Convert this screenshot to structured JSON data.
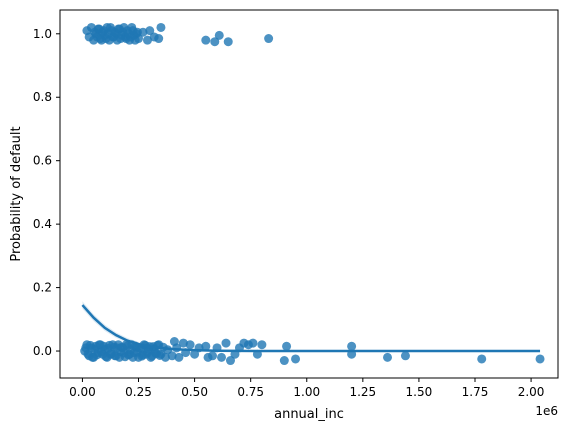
{
  "chart_data": {
    "type": "scatter",
    "title": "",
    "xlabel": "annual_inc",
    "ylabel": "Probability of default",
    "x_offset_label": "1e6",
    "xlim": [
      -0.1,
      2.12
    ],
    "ylim": [
      -0.085,
      1.075
    ],
    "x_ticks": [
      0.0,
      0.25,
      0.5,
      0.75,
      1.0,
      1.25,
      1.5,
      1.75,
      2.0
    ],
    "x_tick_labels": [
      "0.00",
      "0.25",
      "0.50",
      "0.75",
      "1.00",
      "1.25",
      "1.50",
      "1.75",
      "2.00"
    ],
    "y_ticks": [
      0.0,
      0.2,
      0.4,
      0.6,
      0.8,
      1.0
    ],
    "y_tick_labels": [
      "0.0",
      "0.2",
      "0.4",
      "0.6",
      "0.8",
      "1.0"
    ],
    "grid": false,
    "legend": "none",
    "point_color": "#1f77b4",
    "series": [
      {
        "kind": "points",
        "description_y": "jittered outcome",
        "points": [
          [
            0.02,
            1.01
          ],
          [
            0.03,
            0.99
          ],
          [
            0.04,
            1.02
          ],
          [
            0.05,
            0.98
          ],
          [
            0.06,
            1.0
          ],
          [
            0.07,
            1.015
          ],
          [
            0.08,
            0.985
          ],
          [
            0.09,
            1.005
          ],
          [
            0.1,
            0.995
          ],
          [
            0.11,
            1.02
          ],
          [
            0.12,
            0.98
          ],
          [
            0.13,
            1.01
          ],
          [
            0.14,
            0.99
          ],
          [
            0.15,
            1.0
          ],
          [
            0.16,
            1.015
          ],
          [
            0.17,
            0.985
          ],
          [
            0.18,
            1.005
          ],
          [
            0.19,
            0.99
          ],
          [
            0.2,
            1.01
          ],
          [
            0.21,
            0.98
          ],
          [
            0.22,
            1.02
          ],
          [
            0.23,
            0.995
          ],
          [
            0.24,
            1.0
          ],
          [
            0.25,
            0.985
          ],
          [
            0.27,
            1.005
          ],
          [
            0.29,
            0.98
          ],
          [
            0.3,
            1.01
          ],
          [
            0.32,
            0.99
          ],
          [
            0.35,
            1.02
          ],
          [
            0.34,
            0.985
          ],
          [
            0.055,
            1.005
          ],
          [
            0.065,
            0.99
          ],
          [
            0.075,
            1.015
          ],
          [
            0.085,
            0.98
          ],
          [
            0.095,
            1.01
          ],
          [
            0.105,
            0.985
          ],
          [
            0.115,
            1.0
          ],
          [
            0.125,
            1.02
          ],
          [
            0.135,
            0.99
          ],
          [
            0.145,
            1.005
          ],
          [
            0.155,
            0.98
          ],
          [
            0.165,
            1.015
          ],
          [
            0.175,
            0.995
          ],
          [
            0.185,
            1.02
          ],
          [
            0.195,
            0.985
          ],
          [
            0.205,
            1.0
          ],
          [
            0.215,
            0.99
          ],
          [
            0.225,
            1.01
          ],
          [
            0.235,
            0.98
          ],
          [
            0.245,
            1.005
          ],
          [
            0.55,
            0.98
          ],
          [
            0.59,
            0.975
          ],
          [
            0.61,
            0.995
          ],
          [
            0.65,
            0.975
          ],
          [
            0.83,
            0.985
          ]
        ]
      },
      {
        "kind": "points",
        "description_y": "jittered outcome",
        "points": [
          [
            0.01,
            0.0
          ],
          [
            0.02,
            0.02
          ],
          [
            0.03,
            -0.015
          ],
          [
            0.04,
            0.01
          ],
          [
            0.05,
            -0.02
          ],
          [
            0.06,
            0.015
          ],
          [
            0.07,
            -0.005
          ],
          [
            0.08,
            0.02
          ],
          [
            0.09,
            -0.01
          ],
          [
            0.1,
            0.005
          ],
          [
            0.11,
            -0.02
          ],
          [
            0.12,
            0.018
          ],
          [
            0.13,
            -0.008
          ],
          [
            0.14,
            0.012
          ],
          [
            0.15,
            -0.015
          ],
          [
            0.16,
            0.02
          ],
          [
            0.17,
            -0.002
          ],
          [
            0.18,
            0.01
          ],
          [
            0.19,
            -0.018
          ],
          [
            0.2,
            0.016
          ],
          [
            0.21,
            -0.01
          ],
          [
            0.22,
            0.02
          ],
          [
            0.23,
            -0.005
          ],
          [
            0.24,
            0.012
          ],
          [
            0.25,
            -0.02
          ],
          [
            0.26,
            0.008
          ],
          [
            0.27,
            -0.012
          ],
          [
            0.28,
            0.018
          ],
          [
            0.29,
            -0.004
          ],
          [
            0.3,
            0.014
          ],
          [
            0.31,
            -0.016
          ],
          [
            0.32,
            0.006
          ],
          [
            0.33,
            -0.008
          ],
          [
            0.34,
            0.02
          ],
          [
            0.35,
            -0.01
          ],
          [
            0.36,
            0.012
          ],
          [
            0.37,
            -0.02
          ],
          [
            0.38,
            0.004
          ],
          [
            0.4,
            -0.015
          ],
          [
            0.41,
            0.03
          ],
          [
            0.42,
            0.01
          ],
          [
            0.43,
            -0.02
          ],
          [
            0.45,
            0.025
          ],
          [
            0.46,
            -0.005
          ],
          [
            0.48,
            0.02
          ],
          [
            0.5,
            -0.01
          ],
          [
            0.52,
            0.01
          ],
          [
            0.55,
            0.015
          ],
          [
            0.56,
            -0.02
          ],
          [
            0.58,
            -0.015
          ],
          [
            0.6,
            0.01
          ],
          [
            0.62,
            -0.02
          ],
          [
            0.64,
            0.025
          ],
          [
            0.66,
            -0.03
          ],
          [
            0.68,
            -0.01
          ],
          [
            0.7,
            0.01
          ],
          [
            0.72,
            0.025
          ],
          [
            0.74,
            0.02
          ],
          [
            0.76,
            0.025
          ],
          [
            0.78,
            -0.01
          ],
          [
            0.8,
            0.02
          ],
          [
            0.9,
            -0.03
          ],
          [
            0.91,
            0.015
          ],
          [
            0.95,
            -0.025
          ],
          [
            1.2,
            0.015
          ],
          [
            1.2,
            -0.01
          ],
          [
            1.36,
            -0.02
          ],
          [
            1.44,
            -0.015
          ],
          [
            1.78,
            -0.025
          ],
          [
            2.04,
            -0.025
          ],
          [
            0.015,
            0.01
          ],
          [
            0.025,
            -0.01
          ],
          [
            0.035,
            0.018
          ],
          [
            0.045,
            -0.02
          ],
          [
            0.055,
            0.005
          ],
          [
            0.065,
            -0.012
          ],
          [
            0.075,
            0.02
          ],
          [
            0.085,
            -0.003
          ],
          [
            0.095,
            0.015
          ],
          [
            0.105,
            -0.018
          ],
          [
            0.115,
            0.008
          ],
          [
            0.125,
            -0.01
          ],
          [
            0.135,
            0.02
          ],
          [
            0.145,
            -0.015
          ],
          [
            0.155,
            0.01
          ],
          [
            0.165,
            -0.02
          ],
          [
            0.175,
            0.012
          ],
          [
            0.185,
            -0.006
          ],
          [
            0.195,
            0.02
          ],
          [
            0.205,
            -0.012
          ],
          [
            0.215,
            0.004
          ],
          [
            0.225,
            -0.02
          ],
          [
            0.235,
            0.016
          ],
          [
            0.245,
            -0.004
          ],
          [
            0.255,
            0.01
          ],
          [
            0.265,
            -0.016
          ],
          [
            0.275,
            0.02
          ],
          [
            0.285,
            -0.01
          ],
          [
            0.295,
            0.006
          ],
          [
            0.305,
            -0.02
          ],
          [
            0.315,
            0.014
          ],
          [
            0.325,
            -0.006
          ],
          [
            0.335,
            0.018
          ],
          [
            0.345,
            -0.014
          ]
        ]
      },
      {
        "kind": "line",
        "description_y": "fitted logistic curve",
        "points": [
          [
            0.0,
            0.145
          ],
          [
            0.05,
            0.105
          ],
          [
            0.1,
            0.073
          ],
          [
            0.15,
            0.05
          ],
          [
            0.2,
            0.033
          ],
          [
            0.25,
            0.022
          ],
          [
            0.3,
            0.014
          ],
          [
            0.4,
            0.006
          ],
          [
            0.5,
            0.003
          ],
          [
            0.6,
            0.001
          ],
          [
            0.8,
            0.0
          ],
          [
            1.0,
            0.0
          ],
          [
            1.5,
            0.0
          ],
          [
            2.04,
            0.0
          ]
        ]
      }
    ]
  }
}
